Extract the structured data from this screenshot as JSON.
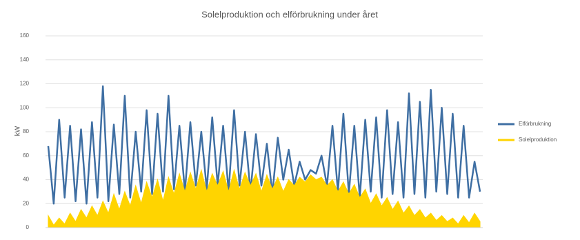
{
  "chart_data": {
    "type": "line",
    "title": "Solelproduktion och elförbrukning under året",
    "ylabel": "kW",
    "categories": [
      null,
      null,
      null,
      null,
      null,
      null,
      null,
      null,
      null,
      null,
      null,
      null,
      null,
      null,
      null,
      null,
      null,
      null,
      null,
      null,
      null,
      null,
      null,
      null,
      null,
      null,
      null,
      null,
      null,
      null,
      null,
      null,
      null,
      null,
      null,
      null,
      null,
      null,
      null,
      null,
      null,
      null,
      null,
      null,
      null,
      null,
      null,
      null,
      null,
      null,
      null,
      null,
      null,
      null,
      null,
      null,
      null,
      null,
      null,
      null,
      null,
      null,
      null,
      null,
      null,
      null,
      null,
      null,
      null,
      null,
      null,
      null,
      null,
      null,
      null,
      null,
      null,
      null,
      null,
      null
    ],
    "series": [
      {
        "name": "Elförbrukning",
        "color": "#3f6fa3",
        "values": [
          68,
          20,
          90,
          25,
          85,
          22,
          82,
          20,
          88,
          25,
          118,
          22,
          86,
          28,
          110,
          25,
          80,
          30,
          98,
          28,
          95,
          30,
          110,
          32,
          85,
          30,
          88,
          35,
          80,
          32,
          92,
          35,
          85,
          30,
          98,
          35,
          80,
          30,
          78,
          35,
          70,
          28,
          75,
          40,
          65,
          35,
          55,
          40,
          48,
          45,
          60,
          35,
          85,
          30,
          95,
          28,
          85,
          25,
          90,
          30,
          92,
          25,
          98,
          28,
          88,
          25,
          112,
          28,
          105,
          25,
          115,
          30,
          100,
          28,
          95,
          25,
          85,
          25,
          55,
          30
        ]
      },
      {
        "name": "Solelproduktion",
        "color": "#ffd400",
        "values": [
          10,
          2,
          8,
          3,
          12,
          5,
          15,
          8,
          18,
          10,
          22,
          12,
          28,
          15,
          30,
          18,
          35,
          20,
          38,
          25,
          40,
          22,
          42,
          28,
          45,
          30,
          46,
          32,
          48,
          30,
          45,
          35,
          47,
          30,
          48,
          32,
          46,
          35,
          45,
          30,
          44,
          32,
          42,
          30,
          40,
          35,
          42,
          38,
          44,
          40,
          42,
          35,
          40,
          30,
          38,
          28,
          36,
          25,
          32,
          20,
          28,
          18,
          25,
          15,
          22,
          12,
          18,
          10,
          15,
          8,
          12,
          6,
          10,
          5,
          8,
          3,
          10,
          4,
          12,
          5
        ]
      }
    ],
    "ylim": [
      0,
      160
    ],
    "yticks": [
      0,
      20,
      40,
      60,
      80,
      100,
      120,
      140,
      160
    ],
    "grid": true,
    "legend": "right"
  }
}
